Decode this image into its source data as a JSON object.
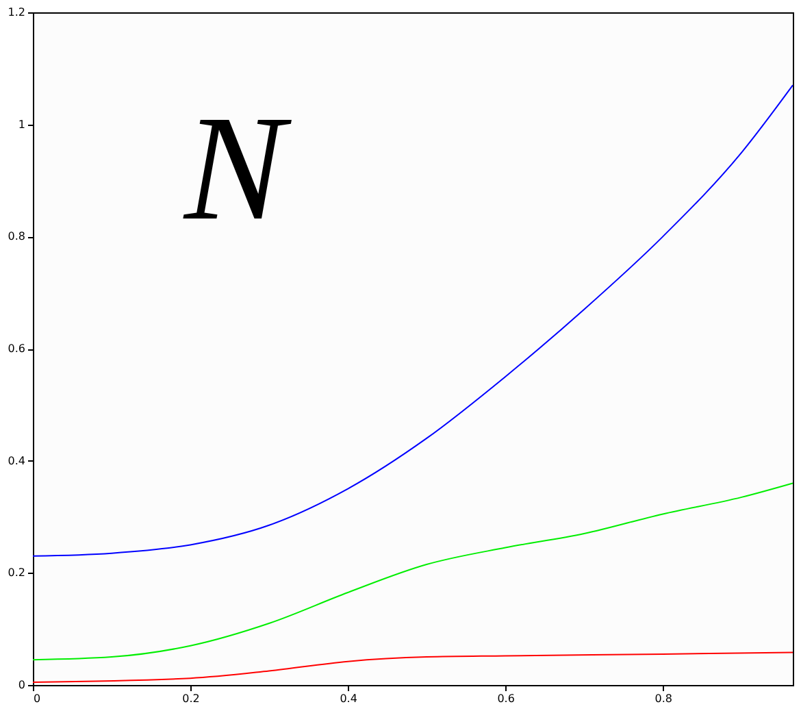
{
  "chart_data": {
    "type": "line",
    "xlim": [
      0,
      0.965
    ],
    "xticks": [
      0,
      0.2,
      0.4,
      0.6,
      0.8
    ],
    "ylim": [
      0,
      1.2
    ],
    "yticks": [
      0,
      0.2,
      0.4,
      0.6,
      0.8,
      1,
      1.2
    ],
    "grid": false,
    "line_style": "solid",
    "marker": "none",
    "annotations": [
      "N"
    ],
    "series": [
      {
        "color": "#0000ff",
        "x": [
          0,
          0.1,
          0.2,
          0.3,
          0.4,
          0.5,
          0.6,
          0.7,
          0.8,
          0.9,
          0.965
        ],
        "values": [
          0.23,
          0.235,
          0.25,
          0.285,
          0.35,
          0.44,
          0.55,
          0.67,
          0.8,
          0.95,
          1.07
        ]
      },
      {
        "color": "#00ee00",
        "x": [
          0,
          0.1,
          0.2,
          0.3,
          0.4,
          0.5,
          0.6,
          0.7,
          0.8,
          0.9,
          0.965
        ],
        "values": [
          0.045,
          0.05,
          0.07,
          0.11,
          0.165,
          0.215,
          0.245,
          0.27,
          0.305,
          0.335,
          0.36
        ]
      },
      {
        "color": "#ff0000",
        "x": [
          0,
          0.2,
          0.3,
          0.4,
          0.5,
          0.6,
          0.8,
          0.965
        ],
        "values": [
          0.005,
          0.012,
          0.025,
          0.042,
          0.05,
          0.052,
          0.055,
          0.058
        ]
      }
    ]
  }
}
